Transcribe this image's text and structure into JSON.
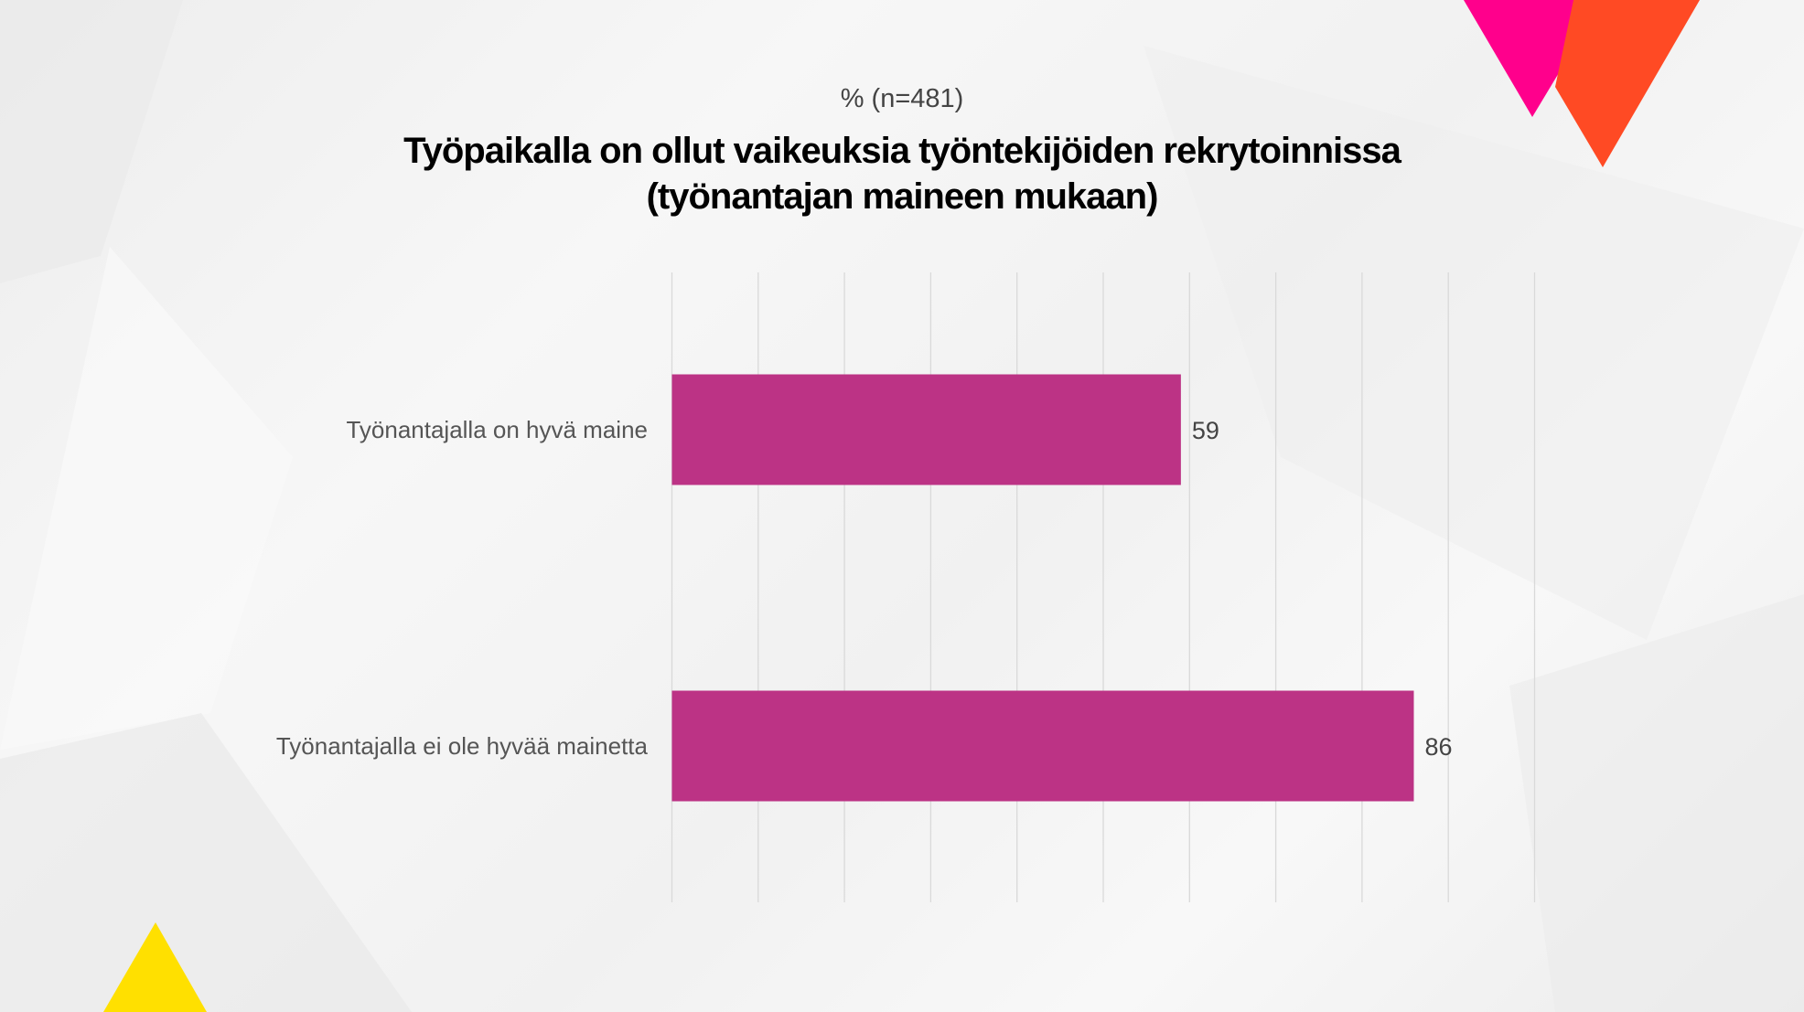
{
  "header": {
    "subtitle": "% (n=481)",
    "title_line1": "Työpaikalla on ollut vaikeuksia työntekijöiden rekrytoinnissa",
    "title_line2": "(työnantajan maineen mukaan)"
  },
  "colors": {
    "bar": "#bc3385",
    "magenta": "#ff008c",
    "orange": "#ff4a24",
    "yellow": "#ffe000",
    "grid": "#d9d9d9"
  },
  "chart_data": {
    "type": "bar",
    "orientation": "horizontal",
    "categories": [
      "Työnantajalla on hyvä maine",
      "Työnantajalla ei ole hyvää mainetta"
    ],
    "values": [
      59,
      86
    ],
    "xlim": [
      0,
      100
    ],
    "grid_step": 10,
    "grid": true,
    "data_labels": true
  }
}
